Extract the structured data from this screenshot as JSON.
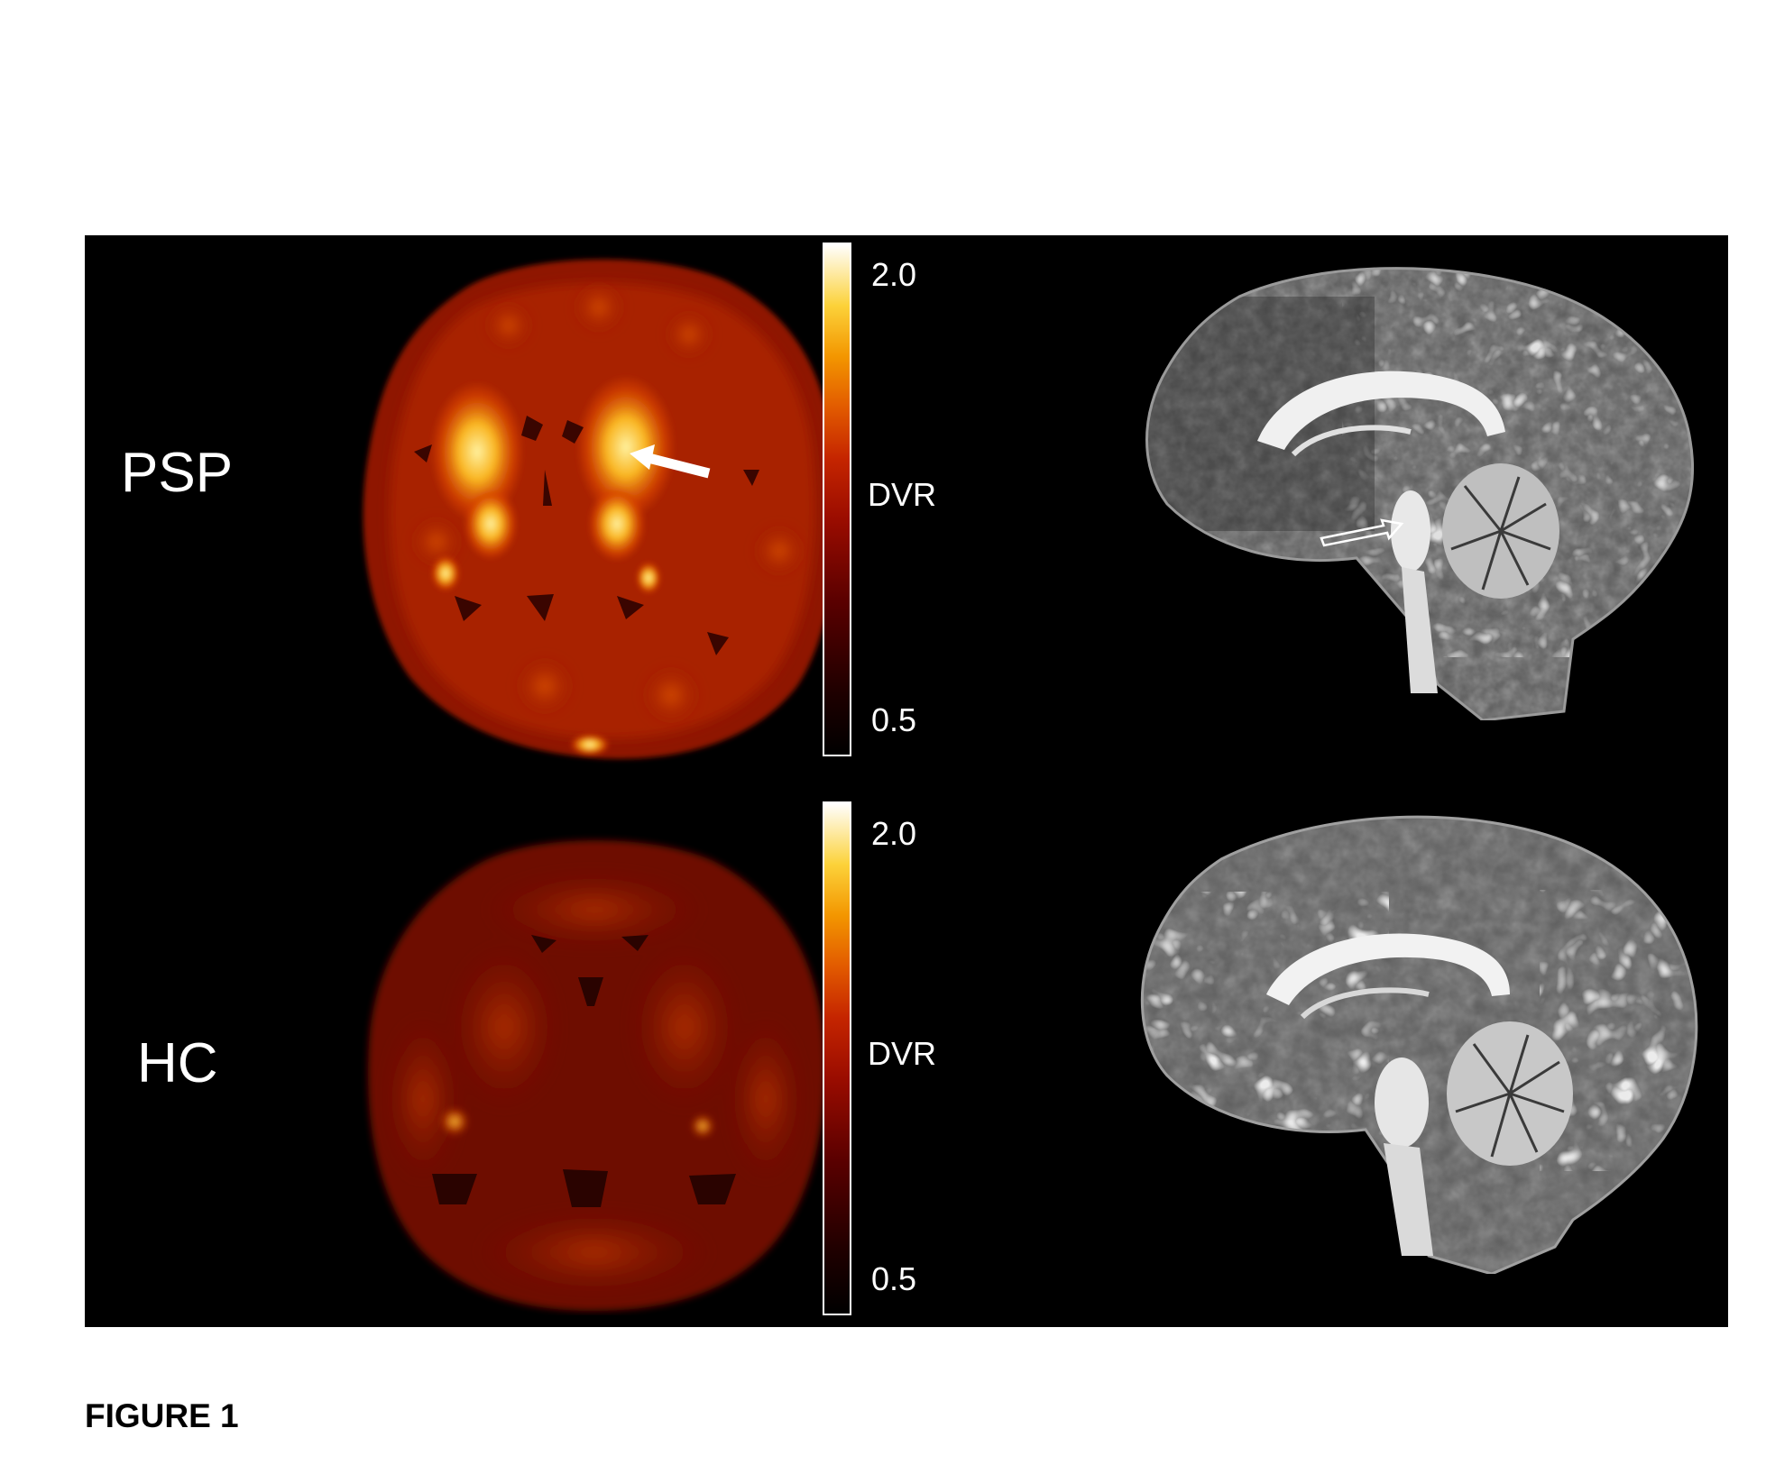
{
  "rows": [
    {
      "label": "PSP",
      "colorbar": {
        "max_label": "2.0",
        "mid_label": "DVR",
        "min_label": "0.5"
      }
    },
    {
      "label": "HC",
      "colorbar": {
        "max_label": "2.0",
        "mid_label": "DVR",
        "min_label": "0.5"
      }
    }
  ],
  "caption": "FIGURE 1",
  "colors": {
    "background": "#000000",
    "text": "#ffffff",
    "caption": "#000000"
  },
  "icons": [
    "white-arrow-icon",
    "outline-arrow-icon"
  ]
}
